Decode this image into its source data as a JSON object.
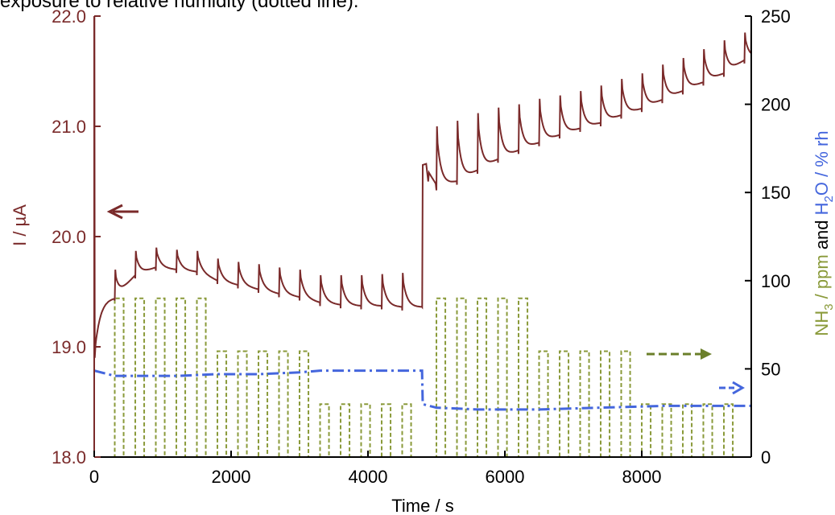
{
  "caption": "exposure to relative humidity (dotted line).",
  "chart_data": {
    "type": "line",
    "xlabel": "Time / s",
    "ylabel_left": "I / µA",
    "ylabel_right": {
      "nh3": "NH",
      "nh3_sub": "3",
      "unit": " / ppm",
      "and": " and ",
      "h2o": "H",
      "h2o_sub": "2",
      "h2o_rest": "O / % rh"
    },
    "xlim": [
      0,
      9600
    ],
    "ylim_left": [
      18.0,
      22.0
    ],
    "ylim_right": [
      0,
      250
    ],
    "x_ticks": [
      "0",
      "2000",
      "4000",
      "6000",
      "8000"
    ],
    "y_left_ticks": [
      "18.0",
      "19.0",
      "20.0",
      "21.0",
      "22.0"
    ],
    "y_right_ticks": [
      "0",
      "50",
      "100",
      "150",
      "200",
      "250"
    ],
    "colors": {
      "current": "#7a2a2a",
      "nh3": "#8a9a3a",
      "h2o": "#4466dd",
      "arrow_current": "#7a2a2a",
      "arrow_nh3": "#6b7f2a",
      "arrow_h2o": "#4466dd"
    },
    "series": [
      {
        "key": "current",
        "axis": "left",
        "style": "solid",
        "pulse_starts": [
          300,
          600,
          900,
          1200,
          1500,
          1800,
          2100,
          2400,
          2700,
          3000,
          3300,
          3600,
          3900,
          4200,
          4500,
          5000,
          5300,
          5600,
          5900,
          6200,
          6500,
          6800,
          7100,
          7400,
          7700,
          8000,
          8300,
          8600,
          8900,
          9200,
          9500
        ],
        "baseline_points": [
          [
            0,
            18.7
          ],
          [
            50,
            19.1
          ],
          [
            300,
            19.45
          ],
          [
            600,
            19.65
          ],
          [
            900,
            19.72
          ],
          [
            1200,
            19.7
          ],
          [
            1500,
            19.68
          ],
          [
            1800,
            19.6
          ],
          [
            2100,
            19.56
          ],
          [
            2400,
            19.52
          ],
          [
            2700,
            19.48
          ],
          [
            3000,
            19.45
          ],
          [
            3300,
            19.4
          ],
          [
            3600,
            19.38
          ],
          [
            3900,
            19.37
          ],
          [
            4200,
            19.37
          ],
          [
            4500,
            19.36
          ],
          [
            4790,
            19.36
          ],
          [
            4800,
            20.65
          ],
          [
            5000,
            20.45
          ],
          [
            5300,
            20.5
          ],
          [
            5600,
            20.6
          ],
          [
            5900,
            20.7
          ],
          [
            6200,
            20.78
          ],
          [
            6500,
            20.85
          ],
          [
            6800,
            20.92
          ],
          [
            7100,
            20.98
          ],
          [
            7400,
            21.03
          ],
          [
            7700,
            21.1
          ],
          [
            8000,
            21.16
          ],
          [
            8300,
            21.24
          ],
          [
            8600,
            21.32
          ],
          [
            8900,
            21.4
          ],
          [
            9200,
            21.48
          ],
          [
            9500,
            21.6
          ],
          [
            9600,
            21.62
          ]
        ],
        "peak_points": [
          [
            300,
            19.7
          ],
          [
            600,
            19.87
          ],
          [
            900,
            19.9
          ],
          [
            1200,
            19.88
          ],
          [
            1500,
            19.87
          ],
          [
            1800,
            19.8
          ],
          [
            2100,
            19.77
          ],
          [
            2400,
            19.75
          ],
          [
            2700,
            19.72
          ],
          [
            3000,
            19.7
          ],
          [
            3300,
            19.65
          ],
          [
            3600,
            19.65
          ],
          [
            3900,
            19.65
          ],
          [
            4200,
            19.66
          ],
          [
            4500,
            19.67
          ],
          [
            5000,
            21.0
          ],
          [
            5300,
            21.05
          ],
          [
            5600,
            21.12
          ],
          [
            5900,
            21.17
          ],
          [
            6200,
            21.2
          ],
          [
            6500,
            21.25
          ],
          [
            6800,
            21.28
          ],
          [
            7100,
            21.32
          ],
          [
            7400,
            21.37
          ],
          [
            7700,
            21.43
          ],
          [
            8000,
            21.48
          ],
          [
            8300,
            21.56
          ],
          [
            8600,
            21.62
          ],
          [
            8900,
            21.7
          ],
          [
            9200,
            21.78
          ],
          [
            9500,
            21.85
          ]
        ]
      },
      {
        "key": "nh3",
        "axis": "right",
        "style": "dashed",
        "pulses": [
          [
            300,
            90
          ],
          [
            600,
            90
          ],
          [
            900,
            90
          ],
          [
            1200,
            90
          ],
          [
            1500,
            90
          ],
          [
            1800,
            60
          ],
          [
            2100,
            60
          ],
          [
            2400,
            60
          ],
          [
            2700,
            60
          ],
          [
            3000,
            60
          ],
          [
            3300,
            30
          ],
          [
            3600,
            30
          ],
          [
            3900,
            30
          ],
          [
            4200,
            30
          ],
          [
            4500,
            30
          ],
          [
            5000,
            90
          ],
          [
            5300,
            90
          ],
          [
            5600,
            90
          ],
          [
            5900,
            90
          ],
          [
            6200,
            90
          ],
          [
            6500,
            60
          ],
          [
            6800,
            60
          ],
          [
            7100,
            60
          ],
          [
            7400,
            60
          ],
          [
            7700,
            60
          ],
          [
            8000,
            30
          ],
          [
            8300,
            30
          ],
          [
            8600,
            30
          ],
          [
            8900,
            30
          ],
          [
            9200,
            30
          ]
        ],
        "pulse_width": 130
      },
      {
        "key": "h2o",
        "axis": "right",
        "style": "dashdot",
        "points": [
          [
            0,
            49
          ],
          [
            300,
            46
          ],
          [
            600,
            46
          ],
          [
            1200,
            46
          ],
          [
            1800,
            47
          ],
          [
            2400,
            47
          ],
          [
            3000,
            48
          ],
          [
            3300,
            49
          ],
          [
            4200,
            49
          ],
          [
            4790,
            49
          ],
          [
            4800,
            30
          ],
          [
            5000,
            28
          ],
          [
            5600,
            27
          ],
          [
            6500,
            27
          ],
          [
            7400,
            28
          ],
          [
            8300,
            29
          ],
          [
            9600,
            29
          ]
        ]
      }
    ],
    "annotations": [
      "arrow-left-current",
      "arrow-right-nh3",
      "arrow-right-h2o"
    ]
  }
}
